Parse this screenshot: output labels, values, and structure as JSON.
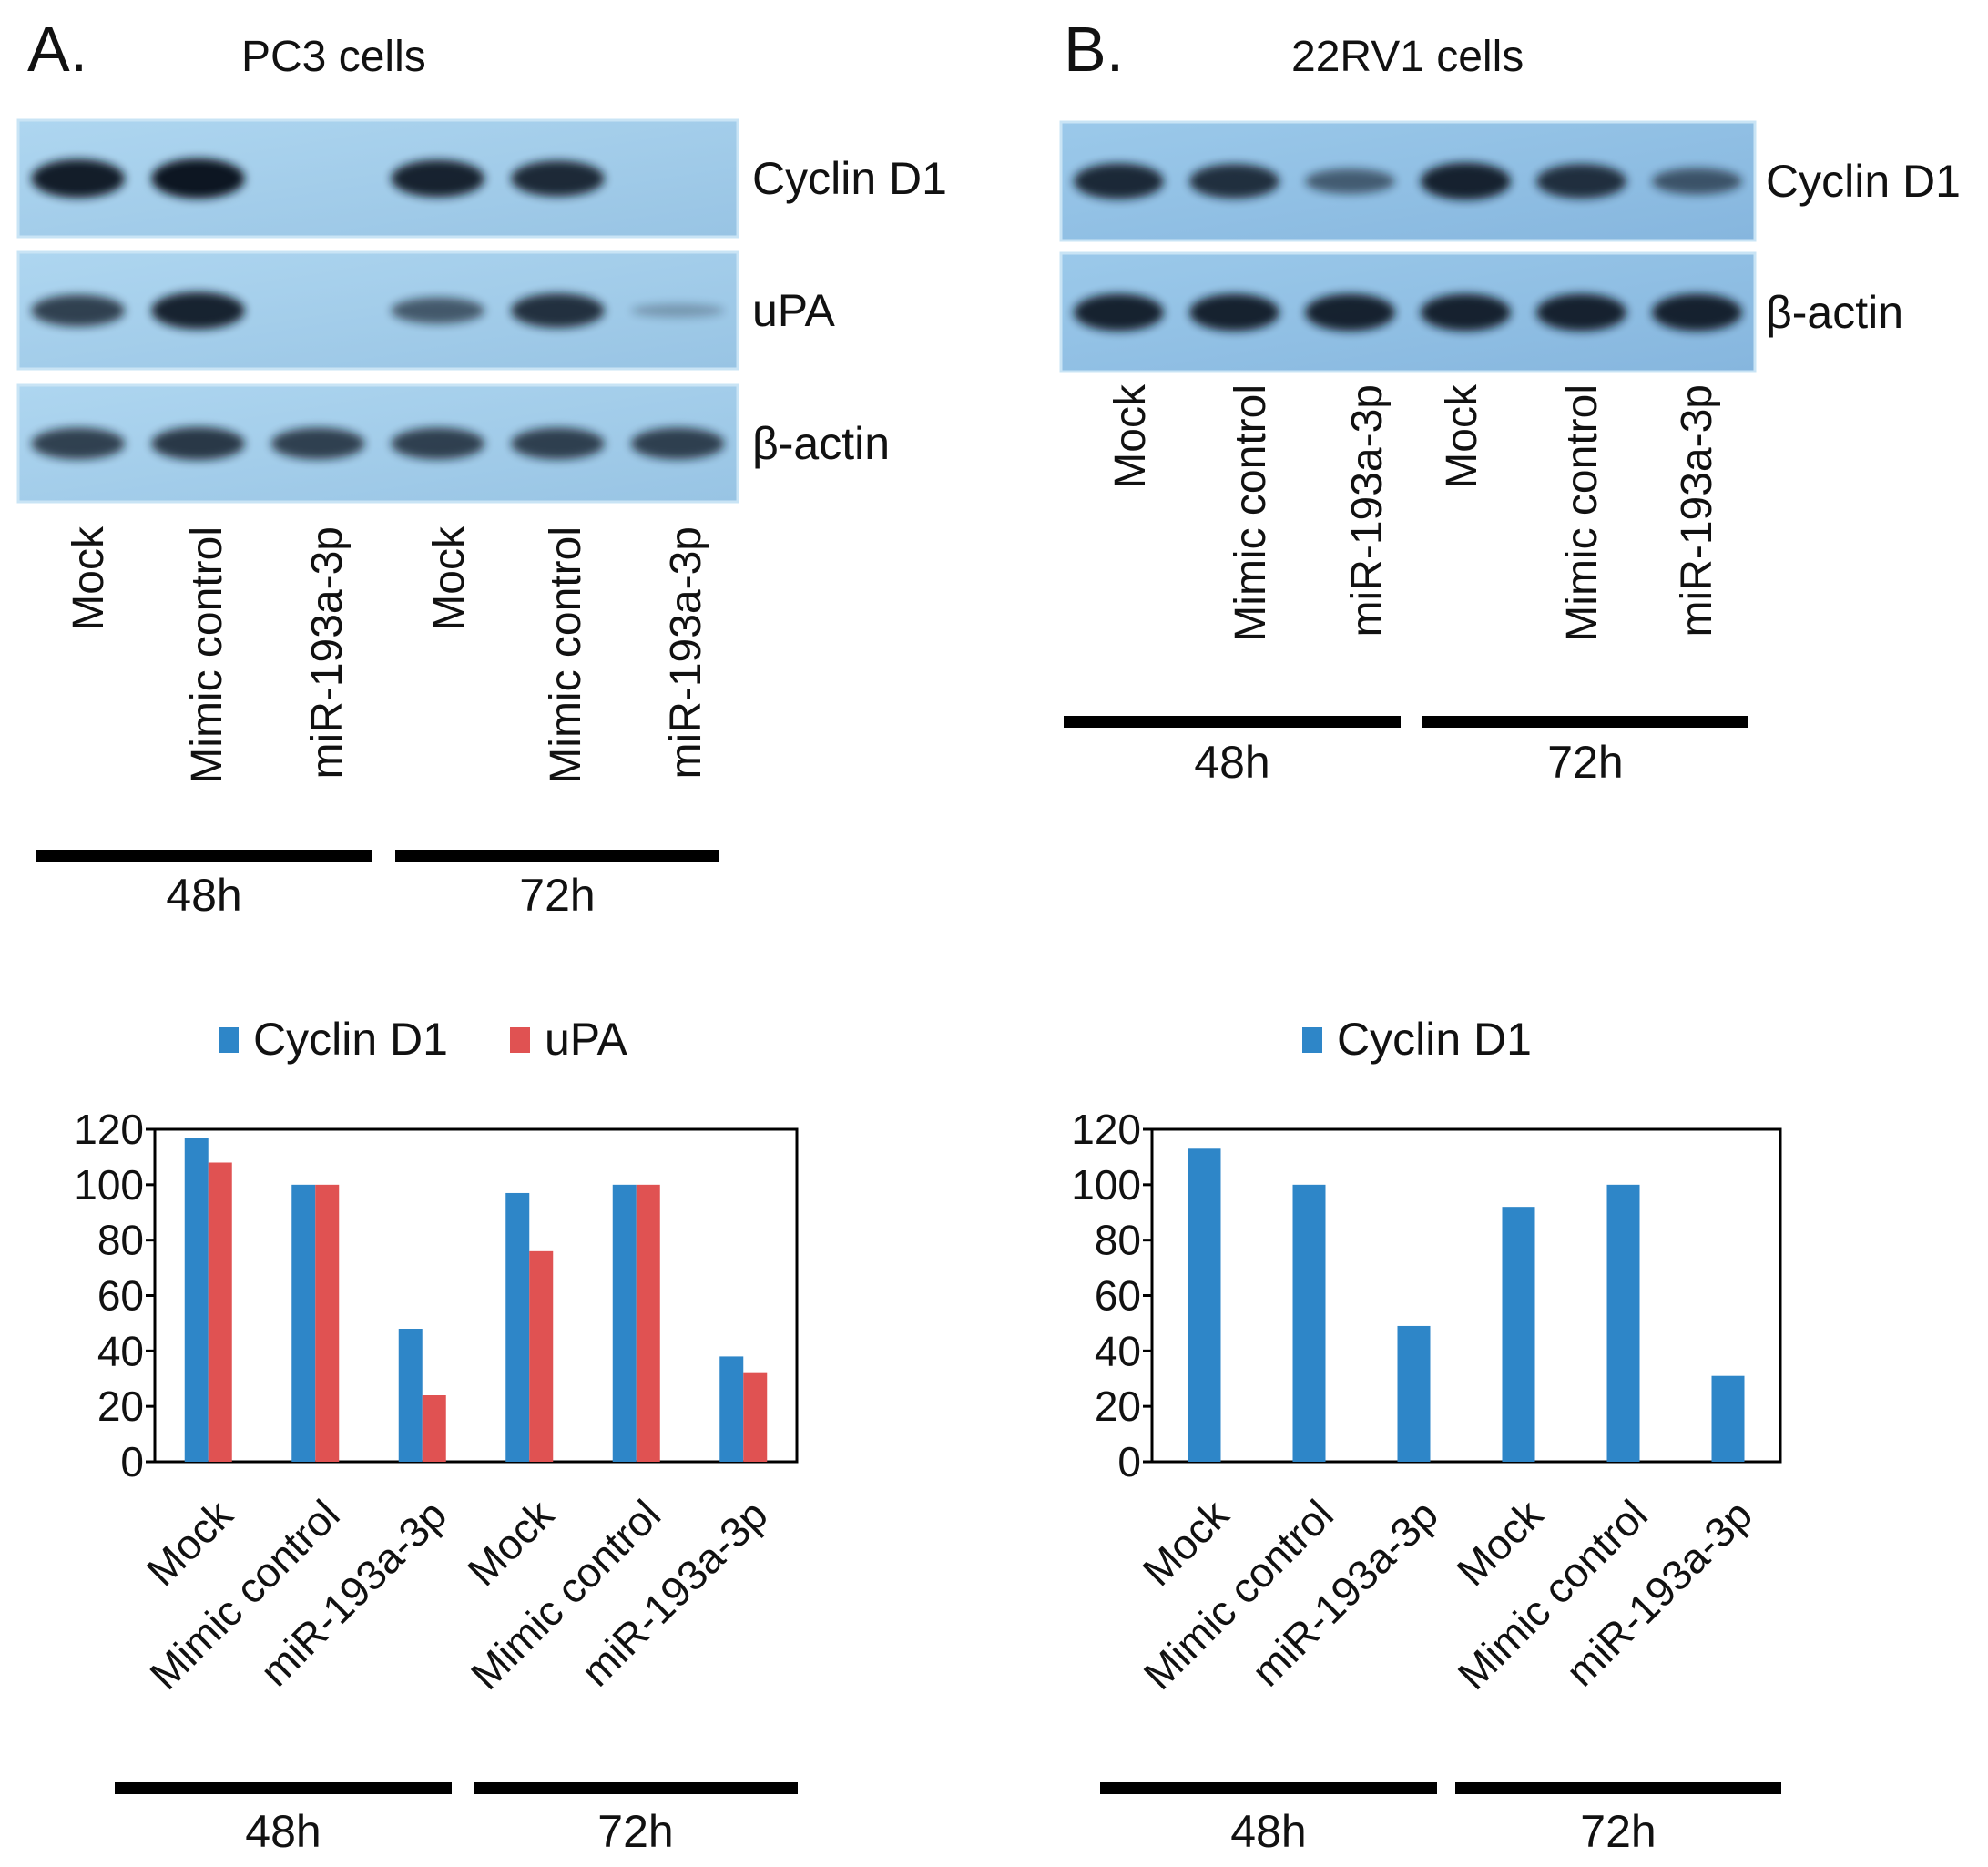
{
  "panels": [
    {
      "letter": "A.",
      "title": "PC3 cells",
      "blots": [
        {
          "label": "Cyclin D1",
          "intensity": [
            0.95,
            1.0,
            0.02,
            0.9,
            0.85,
            0.02
          ]
        },
        {
          "label": "uPA",
          "intensity": [
            0.7,
            0.9,
            0.02,
            0.5,
            0.8,
            0.04
          ]
        },
        {
          "label": "β-actin",
          "intensity": [
            0.7,
            0.75,
            0.7,
            0.7,
            0.7,
            0.7
          ]
        }
      ],
      "lanes": [
        "Mock",
        "Mimic control",
        "miR-193a-3p",
        "Mock",
        "Mimic control",
        "miR-193a-3p"
      ],
      "groups": [
        "48h",
        "72h"
      ]
    },
    {
      "letter": "B.",
      "title": "22RV1 cells",
      "blots": [
        {
          "label": "Cyclin D1",
          "intensity": [
            0.85,
            0.8,
            0.45,
            0.9,
            0.8,
            0.5
          ]
        },
        {
          "label": "β-actin",
          "intensity": [
            0.9,
            0.9,
            0.9,
            0.9,
            0.9,
            0.9
          ]
        }
      ],
      "lanes": [
        "Mock",
        "Mimic control",
        "miR-193a-3p",
        "Mock",
        "Mimic control",
        "miR-193a-3p"
      ],
      "groups": [
        "48h",
        "72h"
      ]
    }
  ],
  "chart_data": [
    {
      "type": "bar",
      "categories": [
        "Mock",
        "Mimic control",
        "miR-193a-3p",
        "Mock",
        "Mimic control",
        "miR-193a-3p"
      ],
      "series": [
        {
          "name": "Cyclin D1",
          "color": "#2e86c8",
          "values": [
            117,
            100,
            48,
            97,
            100,
            38
          ]
        },
        {
          "name": "uPA",
          "color": "#e05252",
          "values": [
            108,
            100,
            24,
            76,
            100,
            32
          ]
        }
      ],
      "ylim": [
        0,
        120
      ],
      "yticks": [
        0,
        20,
        40,
        60,
        80,
        100,
        120
      ],
      "legend": "top",
      "groups": [
        "48h",
        "72h"
      ]
    },
    {
      "type": "bar",
      "categories": [
        "Mock",
        "Mimic control",
        "miR-193a-3p",
        "Mock",
        "Mimic control",
        "miR-193a-3p"
      ],
      "series": [
        {
          "name": "Cyclin D1",
          "color": "#2e86c8",
          "values": [
            113,
            100,
            49,
            92,
            100,
            31
          ]
        }
      ],
      "ylim": [
        0,
        120
      ],
      "yticks": [
        0,
        20,
        40,
        60,
        80,
        100,
        120
      ],
      "legend": "top",
      "groups": [
        "48h",
        "72h"
      ]
    }
  ]
}
